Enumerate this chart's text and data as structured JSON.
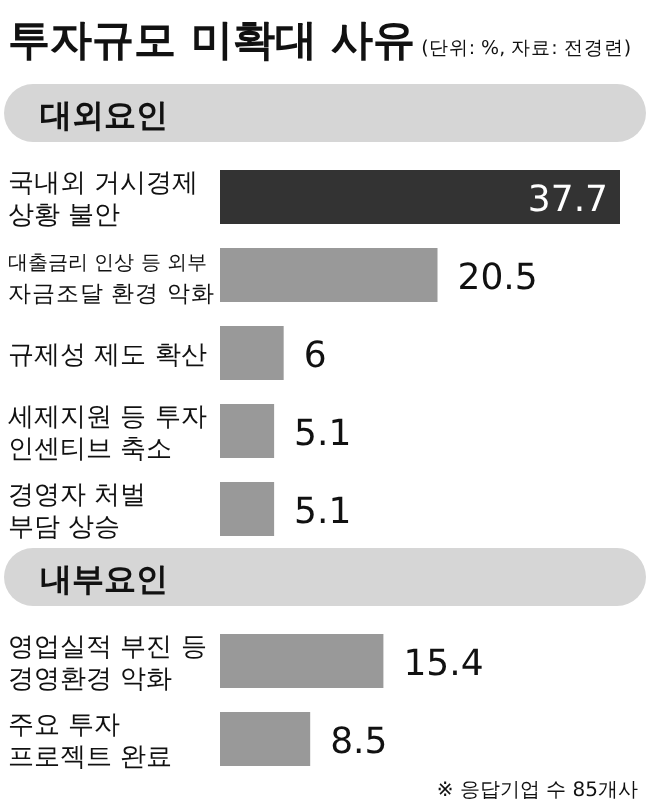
{
  "chart_data": [
    {
      "type": "bar",
      "orientation": "horizontal",
      "title": "투자규모 미확대 사유",
      "subtitle": "(단위: %, 자료: 전경련)",
      "ylabel": "대외요인",
      "categories": [
        "국내외 거시경제\n상황 불안",
        "대출금리 인상 등 외부\n자금조달 환경 악화",
        "규제성 제도 확산",
        "세제지원 등 투자\n인센티브 축소",
        "경영자 처벌\n부담 상승"
      ],
      "values": [
        37.7,
        20.5,
        6,
        5.1,
        5.1
      ],
      "colors": [
        "#333333",
        "#999999",
        "#999999",
        "#999999",
        "#999999"
      ],
      "data_labels": true
    },
    {
      "type": "bar",
      "orientation": "horizontal",
      "ylabel": "내부요인",
      "categories": [
        "영업실적 부진 등\n경영환경 악화",
        "주요 투자\n프로젝트 완료"
      ],
      "values": [
        15.4,
        8.5
      ],
      "colors": [
        "#999999",
        "#999999"
      ],
      "data_labels": true,
      "annotations": [
        "※ 응답기업 수 85개사"
      ]
    }
  ]
}
